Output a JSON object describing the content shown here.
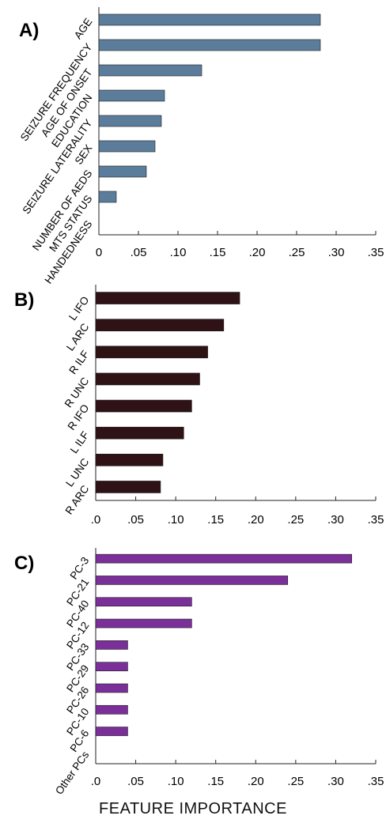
{
  "xlabel": "FEATURE IMPORTANCE",
  "chart_data": [
    {
      "type": "bar",
      "orientation": "horizontal",
      "panel": "A)",
      "categories": [
        "AGE",
        "SEIZURE FREQUENCY",
        "AGE OF ONSET",
        "EDUCATION",
        "SEIZURE LATERALITY",
        "SEX",
        "NUMBER OF AEDS",
        "MTS STATUS",
        "HANDEDNESS"
      ],
      "values": [
        0.28,
        0.28,
        0.13,
        0.083,
        0.079,
        0.071,
        0.06,
        0.022,
        0.0
      ],
      "xticks": [
        "0",
        ".05",
        ".10",
        ".15",
        ".20",
        ".25",
        ".30",
        ".35"
      ],
      "xlim": [
        0,
        0.35
      ],
      "color": "#5b7d9b",
      "grid": false
    },
    {
      "type": "bar",
      "orientation": "horizontal",
      "panel": "B)",
      "categories": [
        "L IFO",
        "L ARC",
        "R ILF",
        "R UNC",
        "R IFO",
        "L ILF",
        "L UNC",
        "R ARC"
      ],
      "values": [
        0.18,
        0.16,
        0.14,
        0.13,
        0.12,
        0.11,
        0.084,
        0.081
      ],
      "xticks": [
        ".0",
        ".05",
        ".10",
        ".15",
        ".20",
        ".25",
        ".30",
        ".35"
      ],
      "xlim": [
        0,
        0.35
      ],
      "color": "#2e1216",
      "grid": false
    },
    {
      "type": "bar",
      "orientation": "horizontal",
      "panel": "C)",
      "categories": [
        "PC-3",
        "PC-21",
        "PC-40",
        "PC-12",
        "PC-33",
        "PC-29",
        "PC-26",
        "PC-10",
        "PC-6",
        "Other PCs"
      ],
      "values": [
        0.32,
        0.24,
        0.12,
        0.12,
        0.04,
        0.04,
        0.04,
        0.04,
        0.04,
        0.0
      ],
      "xticks": [
        ".0",
        ".05",
        ".10",
        ".15",
        ".20",
        ".25",
        ".30",
        ".35"
      ],
      "xlim": [
        0,
        0.35
      ],
      "color": "#7b2f99",
      "grid": false
    }
  ]
}
